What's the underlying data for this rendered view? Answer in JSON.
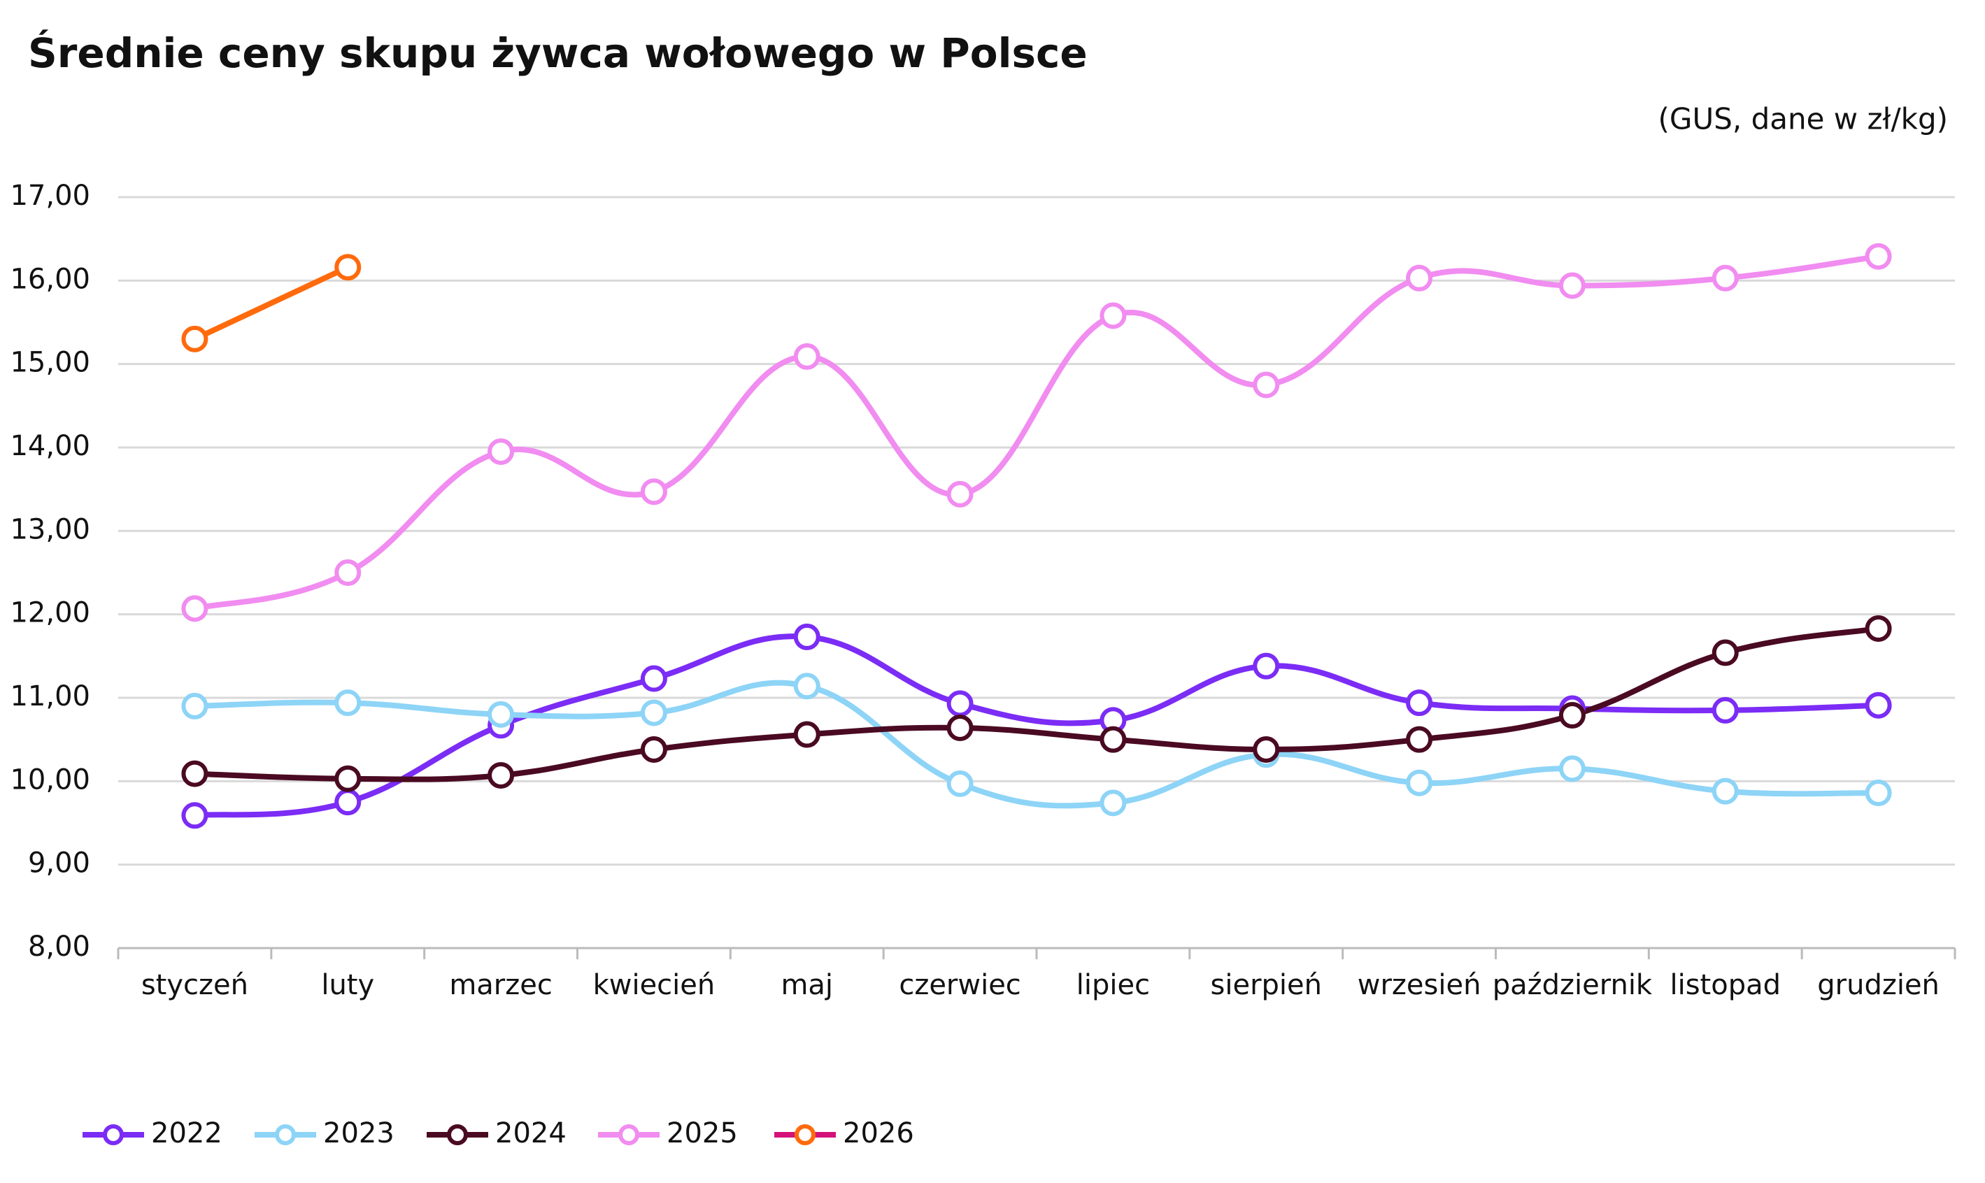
{
  "chart_data": {
    "type": "line",
    "title": "Średnie ceny skupu żywca wołowego w Polsce",
    "subtitle": "(GUS, dane w zł/kg)",
    "categories": [
      "styczeń",
      "luty",
      "marzec",
      "kwiecień",
      "maj",
      "czerwiec",
      "lipiec",
      "sierpień",
      "wrzesień",
      "październik",
      "listopad",
      "grudzień"
    ],
    "series": [
      {
        "name": "2022",
        "color": "#7b2cf5",
        "values": [
          9.59,
          9.75,
          10.67,
          11.23,
          11.73,
          10.93,
          10.73,
          11.38,
          10.94,
          10.87,
          10.85,
          10.91
        ]
      },
      {
        "name": "2023",
        "color": "#8dd4f7",
        "values": [
          10.9,
          10.94,
          10.8,
          10.82,
          11.14,
          9.97,
          9.74,
          10.32,
          9.98,
          10.15,
          9.88,
          9.86
        ]
      },
      {
        "name": "2024",
        "color": "#4a0a22",
        "values": [
          10.09,
          10.03,
          10.07,
          10.38,
          10.56,
          10.64,
          10.5,
          10.38,
          10.5,
          10.79,
          11.54,
          11.83
        ]
      },
      {
        "name": "2025",
        "color": "#f18cf0",
        "values": [
          12.07,
          12.5,
          13.95,
          13.47,
          15.09,
          13.44,
          15.58,
          14.75,
          16.03,
          15.94,
          16.03,
          16.29
        ]
      },
      {
        "name": "2026",
        "color": "#ff6a0d",
        "legend_color": "#d4127a",
        "values": [
          15.3,
          16.16,
          null,
          null,
          null,
          null,
          null,
          null,
          null,
          null,
          null,
          null
        ]
      }
    ],
    "ylim": [
      8,
      17
    ],
    "yticks": [
      {
        "value": 8,
        "label": "8,00"
      },
      {
        "value": 9,
        "label": "9,00"
      },
      {
        "value": 10,
        "label": "10,00"
      },
      {
        "value": 11,
        "label": "11,00"
      },
      {
        "value": 12,
        "label": "12,00"
      },
      {
        "value": 13,
        "label": "13,00"
      },
      {
        "value": 14,
        "label": "14,00"
      },
      {
        "value": 15,
        "label": "15,00"
      },
      {
        "value": 16,
        "label": "16,00"
      },
      {
        "value": 17,
        "label": "17,00"
      }
    ],
    "grid": true,
    "smooth": true,
    "legend": "bottom"
  }
}
